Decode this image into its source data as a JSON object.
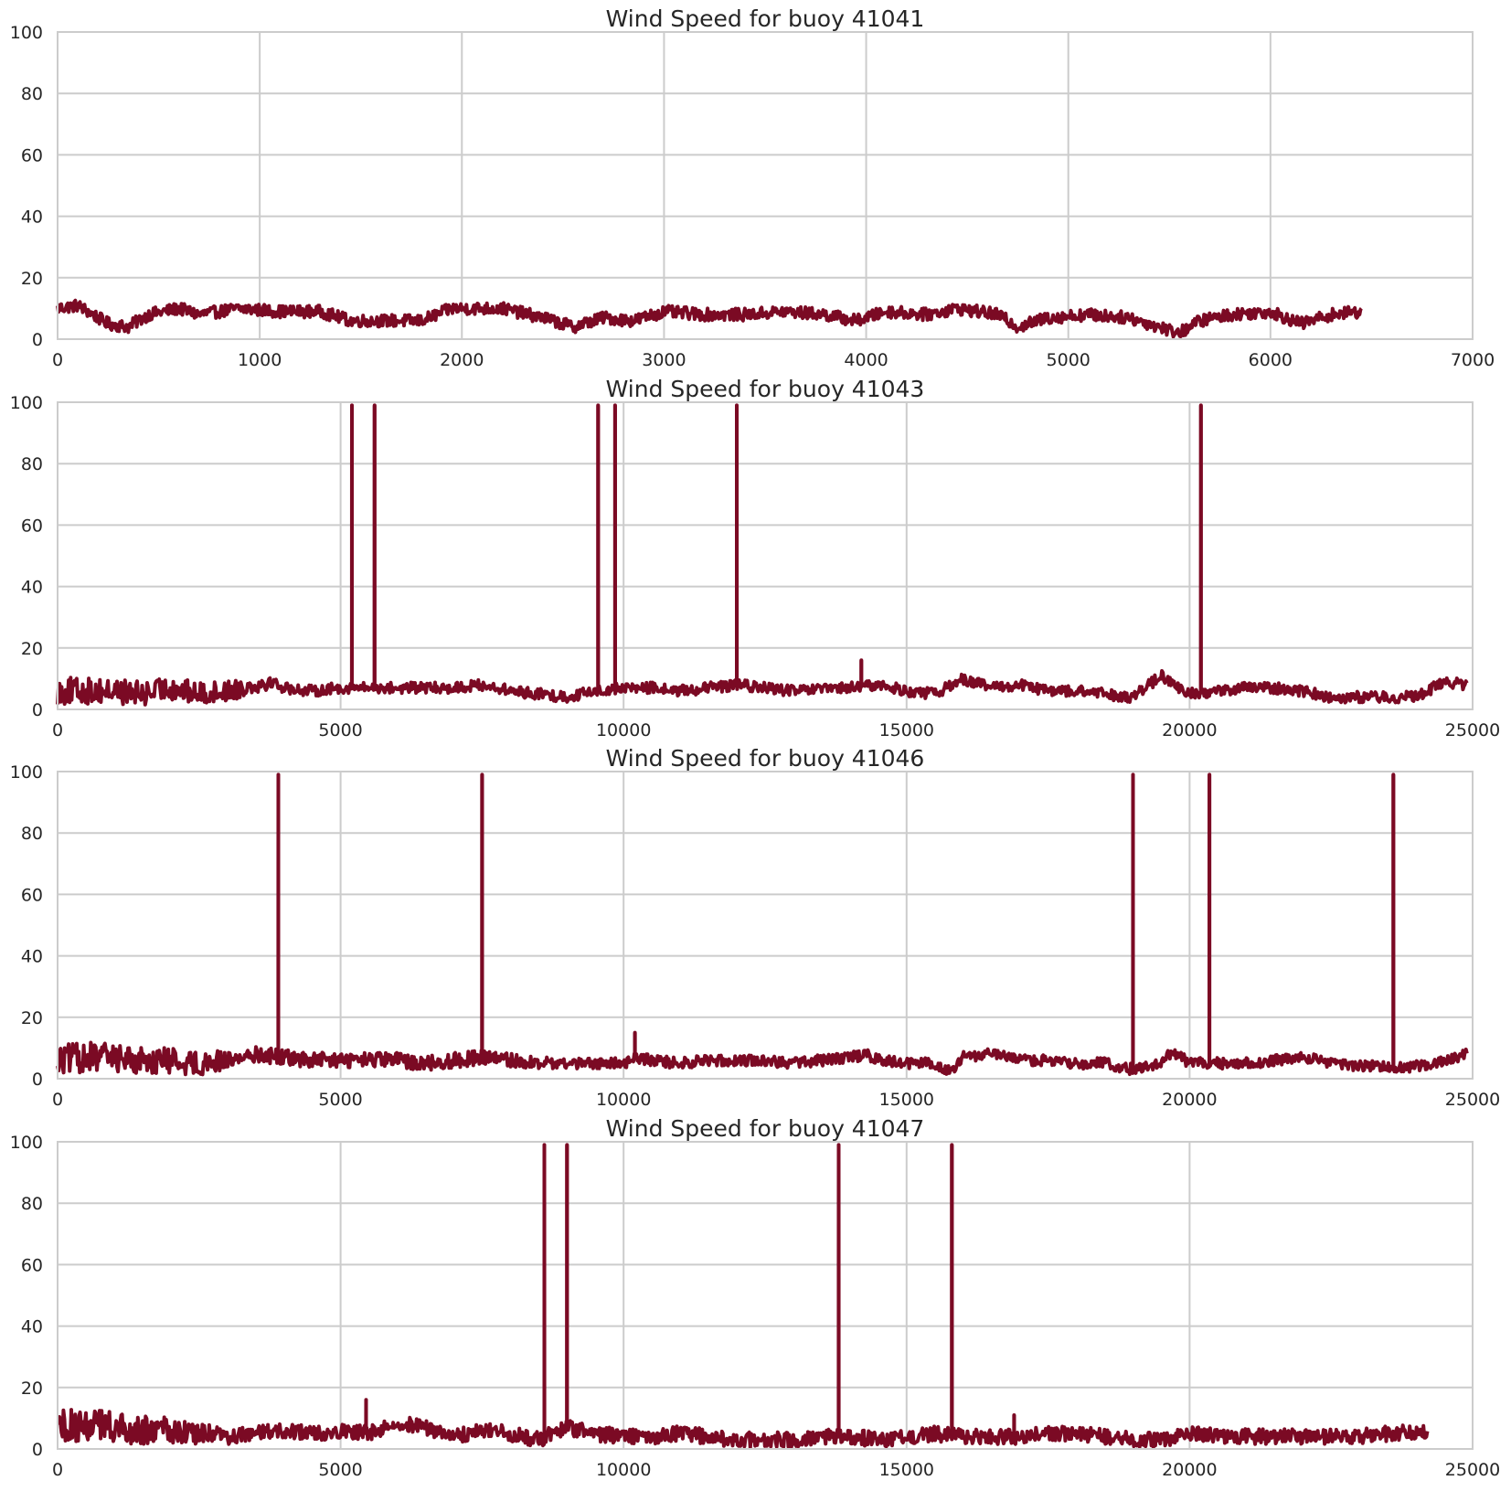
{
  "chart_data": [
    {
      "type": "line",
      "title": "Wind Speed for buoy 41041",
      "xlabel": "",
      "ylabel": "",
      "xlim": [
        0,
        7000
      ],
      "ylim": [
        0,
        100
      ],
      "xticks": [
        0,
        1000,
        2000,
        3000,
        4000,
        5000,
        6000,
        7000
      ],
      "yticks": [
        0,
        20,
        40,
        60,
        80,
        100
      ],
      "grid": true,
      "color": "#7b0a24",
      "x_max_data": 6450,
      "baseline_profile": [
        [
          0,
          10
        ],
        [
          100,
          11
        ],
        [
          250,
          5
        ],
        [
          350,
          4
        ],
        [
          450,
          8
        ],
        [
          600,
          10
        ],
        [
          700,
          8
        ],
        [
          900,
          10
        ],
        [
          1100,
          9
        ],
        [
          1300,
          9
        ],
        [
          1450,
          6
        ],
        [
          1600,
          6
        ],
        [
          1800,
          6
        ],
        [
          1950,
          10
        ],
        [
          2200,
          10
        ],
        [
          2400,
          7
        ],
        [
          2550,
          4
        ],
        [
          2700,
          7
        ],
        [
          2850,
          6
        ],
        [
          3000,
          9
        ],
        [
          3200,
          8
        ],
        [
          3400,
          8
        ],
        [
          3600,
          9
        ],
        [
          3800,
          8
        ],
        [
          3950,
          6
        ],
        [
          4100,
          9
        ],
        [
          4300,
          8
        ],
        [
          4450,
          10
        ],
        [
          4650,
          8
        ],
        [
          4750,
          4
        ],
        [
          4900,
          7
        ],
        [
          5100,
          8
        ],
        [
          5300,
          7
        ],
        [
          5450,
          4
        ],
        [
          5550,
          2
        ],
        [
          5650,
          6
        ],
        [
          5800,
          8
        ],
        [
          6000,
          9
        ],
        [
          6150,
          5
        ],
        [
          6300,
          8
        ],
        [
          6450,
          9
        ]
      ],
      "noise_profile": [
        [
          0,
          2
        ],
        [
          6450,
          2
        ]
      ],
      "spikes": []
    },
    {
      "type": "line",
      "title": "Wind Speed for buoy 41043",
      "xlabel": "",
      "ylabel": "",
      "xlim": [
        0,
        25000
      ],
      "ylim": [
        0,
        100
      ],
      "xticks": [
        0,
        5000,
        10000,
        15000,
        20000,
        25000
      ],
      "yticks": [
        0,
        20,
        40,
        60,
        80,
        100
      ],
      "grid": true,
      "color": "#7b0a24",
      "x_max_data": 24900,
      "baseline_profile": [
        [
          0,
          6
        ],
        [
          500,
          6
        ],
        [
          1000,
          6
        ],
        [
          1500,
          5
        ],
        [
          2000,
          7
        ],
        [
          2500,
          5
        ],
        [
          3000,
          6
        ],
        [
          3500,
          8
        ],
        [
          3800,
          9
        ],
        [
          4000,
          7
        ],
        [
          4500,
          6
        ],
        [
          5000,
          7
        ],
        [
          6000,
          7
        ],
        [
          7000,
          7
        ],
        [
          7500,
          8
        ],
        [
          8000,
          6
        ],
        [
          8500,
          5
        ],
        [
          9000,
          4
        ],
        [
          9500,
          6
        ],
        [
          10000,
          7
        ],
        [
          10500,
          7
        ],
        [
          11000,
          6
        ],
        [
          12000,
          8
        ],
        [
          13000,
          6
        ],
        [
          14000,
          7
        ],
        [
          14500,
          8
        ],
        [
          15000,
          6
        ],
        [
          15500,
          5
        ],
        [
          16000,
          10
        ],
        [
          16500,
          7
        ],
        [
          17000,
          8
        ],
        [
          17500,
          6
        ],
        [
          18000,
          6
        ],
        [
          18500,
          5
        ],
        [
          19000,
          4
        ],
        [
          19500,
          11
        ],
        [
          19800,
          7
        ],
        [
          20000,
          5
        ],
        [
          20500,
          6
        ],
        [
          21000,
          7
        ],
        [
          21500,
          7
        ],
        [
          22000,
          6
        ],
        [
          22500,
          4
        ],
        [
          23000,
          4
        ],
        [
          23500,
          4
        ],
        [
          24000,
          4
        ],
        [
          24500,
          9
        ],
        [
          24900,
          8
        ]
      ],
      "noise_profile": [
        [
          0,
          4.5
        ],
        [
          3000,
          3.5
        ],
        [
          4000,
          1.8
        ],
        [
          24900,
          1.8
        ]
      ],
      "spikes": [
        {
          "x": 5200,
          "y": 99
        },
        {
          "x": 5600,
          "y": 99
        },
        {
          "x": 9550,
          "y": 99
        },
        {
          "x": 9850,
          "y": 99
        },
        {
          "x": 12000,
          "y": 99
        },
        {
          "x": 20200,
          "y": 99
        },
        {
          "x": 14200,
          "y": 16
        }
      ]
    },
    {
      "type": "line",
      "title": "Wind Speed for buoy 41046",
      "xlabel": "",
      "ylabel": "",
      "xlim": [
        0,
        25000
      ],
      "ylim": [
        0,
        100
      ],
      "xticks": [
        0,
        5000,
        10000,
        15000,
        20000,
        25000
      ],
      "yticks": [
        0,
        20,
        40,
        60,
        80,
        100
      ],
      "grid": true,
      "color": "#7b0a24",
      "x_max_data": 24900,
      "baseline_profile": [
        [
          0,
          6
        ],
        [
          500,
          7
        ],
        [
          1000,
          7
        ],
        [
          1500,
          6
        ],
        [
          2000,
          6
        ],
        [
          2500,
          5
        ],
        [
          3000,
          6
        ],
        [
          3500,
          8
        ],
        [
          4000,
          7
        ],
        [
          4500,
          6
        ],
        [
          5000,
          6
        ],
        [
          5500,
          6
        ],
        [
          6000,
          6
        ],
        [
          6500,
          5
        ],
        [
          7000,
          6
        ],
        [
          7500,
          7
        ],
        [
          8000,
          6
        ],
        [
          8500,
          5
        ],
        [
          9000,
          5
        ],
        [
          9500,
          5
        ],
        [
          10000,
          5
        ],
        [
          10200,
          7
        ],
        [
          10500,
          6
        ],
        [
          11000,
          5
        ],
        [
          11500,
          6
        ],
        [
          12000,
          6
        ],
        [
          12500,
          6
        ],
        [
          13000,
          5
        ],
        [
          13500,
          6
        ],
        [
          14000,
          7
        ],
        [
          14300,
          8
        ],
        [
          14500,
          6
        ],
        [
          15000,
          5
        ],
        [
          15500,
          5
        ],
        [
          15800,
          2
        ],
        [
          16000,
          7
        ],
        [
          16500,
          8
        ],
        [
          17000,
          6
        ],
        [
          17500,
          6
        ],
        [
          18000,
          5
        ],
        [
          18500,
          5
        ],
        [
          19000,
          3
        ],
        [
          19500,
          5
        ],
        [
          19700,
          9
        ],
        [
          20000,
          5
        ],
        [
          20500,
          5
        ],
        [
          21000,
          5
        ],
        [
          21500,
          6
        ],
        [
          22000,
          7
        ],
        [
          22500,
          5
        ],
        [
          23000,
          4
        ],
        [
          23500,
          4
        ],
        [
          24000,
          4
        ],
        [
          24500,
          6
        ],
        [
          24900,
          8
        ]
      ],
      "noise_profile": [
        [
          0,
          5
        ],
        [
          2500,
          4
        ],
        [
          3500,
          2.5
        ],
        [
          7500,
          2.5
        ],
        [
          9000,
          1.8
        ],
        [
          24900,
          1.8
        ]
      ],
      "spikes": [
        {
          "x": 3900,
          "y": 99
        },
        {
          "x": 7500,
          "y": 99
        },
        {
          "x": 19000,
          "y": 99
        },
        {
          "x": 20350,
          "y": 99
        },
        {
          "x": 23600,
          "y": 99
        },
        {
          "x": 10200,
          "y": 15
        }
      ]
    },
    {
      "type": "line",
      "title": "Wind Speed for buoy 41047",
      "xlabel": "",
      "ylabel": "",
      "xlim": [
        0,
        25000
      ],
      "ylim": [
        0,
        100
      ],
      "xticks": [
        0,
        5000,
        10000,
        15000,
        20000,
        25000
      ],
      "yticks": [
        0,
        20,
        40,
        60,
        80,
        100
      ],
      "grid": true,
      "color": "#7b0a24",
      "x_max_data": 24200,
      "baseline_profile": [
        [
          0,
          7
        ],
        [
          500,
          8
        ],
        [
          1000,
          7
        ],
        [
          1500,
          6
        ],
        [
          2000,
          6
        ],
        [
          2500,
          5
        ],
        [
          3000,
          4
        ],
        [
          3500,
          5
        ],
        [
          4000,
          6
        ],
        [
          4500,
          5
        ],
        [
          5000,
          6
        ],
        [
          5500,
          5
        ],
        [
          6000,
          9
        ],
        [
          6500,
          7
        ],
        [
          7000,
          4
        ],
        [
          7500,
          6
        ],
        [
          8000,
          5
        ],
        [
          8500,
          3
        ],
        [
          9000,
          7
        ],
        [
          9500,
          5
        ],
        [
          10000,
          4
        ],
        [
          10500,
          4
        ],
        [
          11000,
          5
        ],
        [
          11500,
          4
        ],
        [
          12000,
          3
        ],
        [
          12500,
          3
        ],
        [
          13000,
          3
        ],
        [
          13500,
          4
        ],
        [
          14000,
          4
        ],
        [
          14500,
          3
        ],
        [
          15000,
          4
        ],
        [
          15500,
          5
        ],
        [
          16000,
          4
        ],
        [
          16500,
          4
        ],
        [
          17000,
          4
        ],
        [
          17500,
          5
        ],
        [
          18000,
          5
        ],
        [
          18500,
          4
        ],
        [
          19000,
          3
        ],
        [
          19500,
          3
        ],
        [
          20000,
          5
        ],
        [
          20500,
          4
        ],
        [
          21000,
          4
        ],
        [
          21500,
          4
        ],
        [
          22000,
          4
        ],
        [
          22500,
          4
        ],
        [
          23000,
          4
        ],
        [
          23500,
          5
        ],
        [
          24200,
          6
        ]
      ],
      "noise_profile": [
        [
          0,
          5.5
        ],
        [
          2000,
          4.5
        ],
        [
          3000,
          2.5
        ],
        [
          24200,
          2.5
        ]
      ],
      "spikes": [
        {
          "x": 8600,
          "y": 99
        },
        {
          "x": 9000,
          "y": 99
        },
        {
          "x": 13800,
          "y": 99
        },
        {
          "x": 15800,
          "y": 99
        },
        {
          "x": 5450,
          "y": 16
        },
        {
          "x": 16900,
          "y": 11
        }
      ]
    }
  ]
}
